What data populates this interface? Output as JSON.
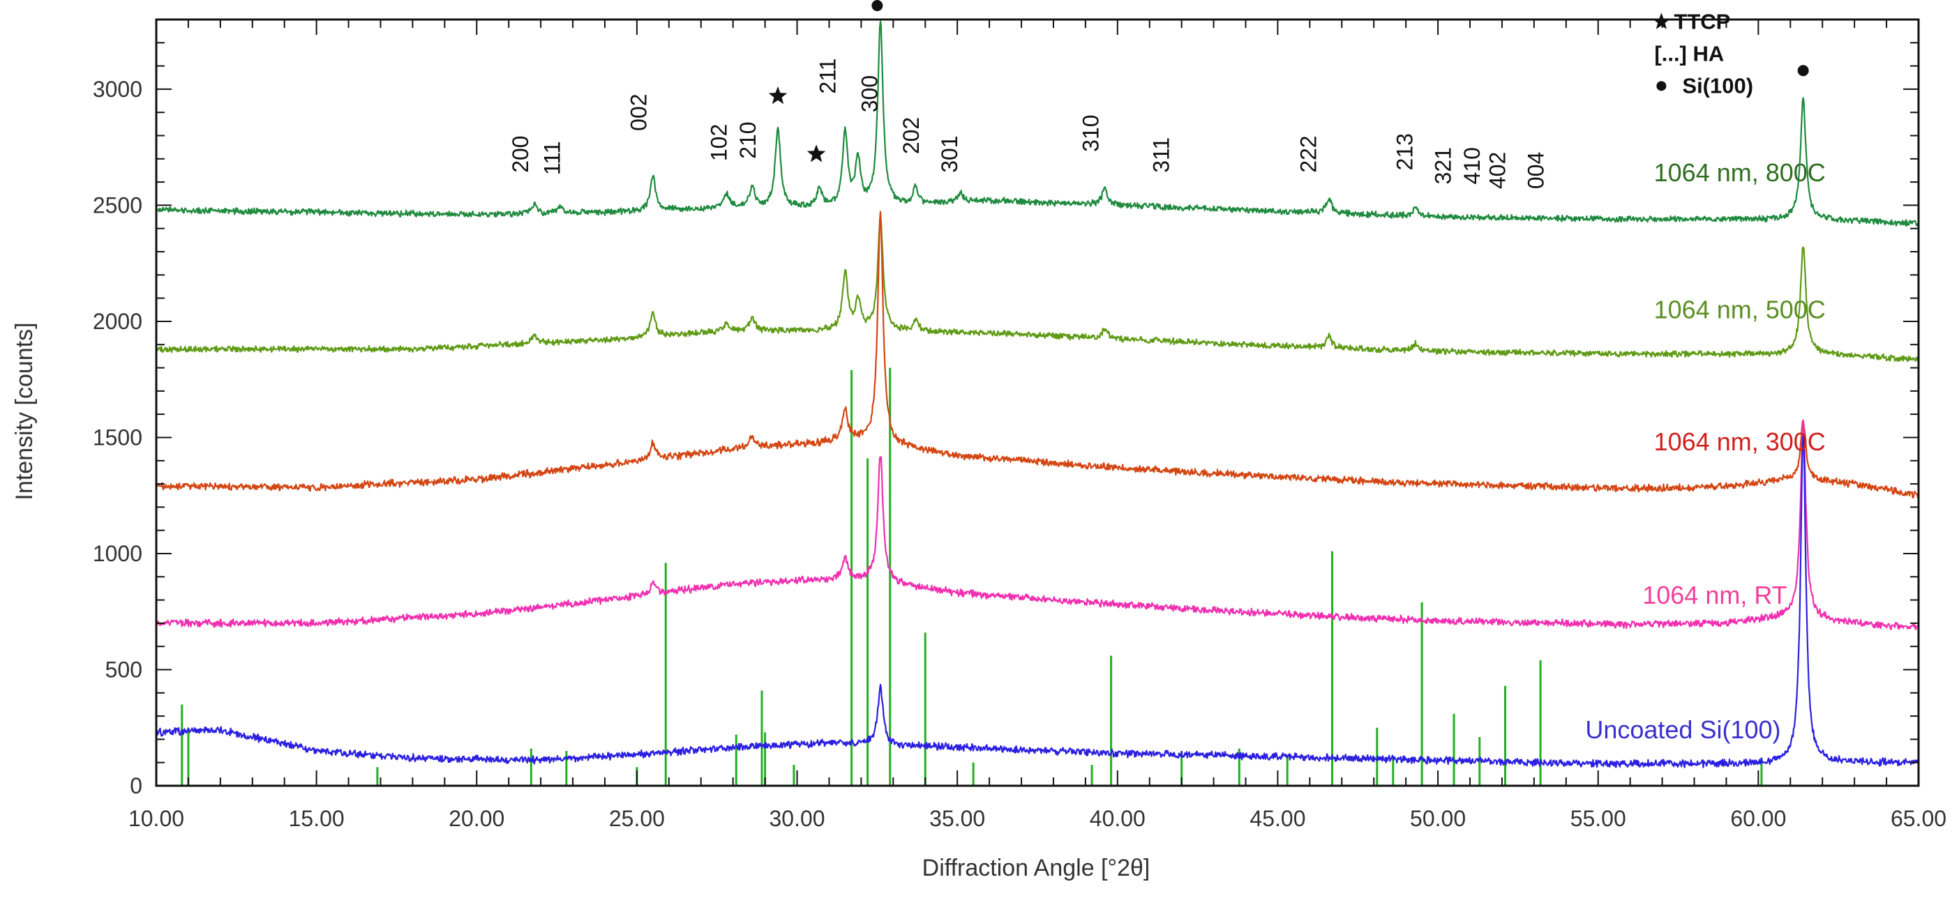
{
  "chart_data": {
    "type": "line",
    "xlabel": "Diffraction Angle [°2θ]",
    "ylabel": "Intensity [counts]",
    "xlim": [
      10,
      65
    ],
    "ylim": [
      0,
      3300
    ],
    "x_ticks": [
      10,
      15,
      20,
      25,
      30,
      35,
      40,
      45,
      50,
      55,
      60,
      65
    ],
    "x_tick_labels": [
      "10.00",
      "15.00",
      "20.00",
      "25.00",
      "30.00",
      "35.00",
      "40.00",
      "45.00",
      "50.00",
      "55.00",
      "60.00",
      "65.00"
    ],
    "y_ticks": [
      0,
      500,
      1000,
      1500,
      2000,
      2500,
      3000
    ],
    "y_tick_labels": [
      "0",
      "500",
      "1000",
      "1500",
      "2000",
      "2500",
      "3000"
    ],
    "legend": {
      "placement": "top-right",
      "entries": [
        {
          "symbol": "star",
          "label": "TTCP"
        },
        {
          "symbol": "bracket",
          "label": "[...] HA"
        },
        {
          "symbol": "dot",
          "label": "Si(100)"
        }
      ]
    },
    "series": [
      {
        "name": "1064 nm, 800C",
        "color": "#1e8a3e",
        "label_color": "#2e6e1e",
        "baseline_points": [
          [
            10,
            2480
          ],
          [
            20,
            2460
          ],
          [
            24,
            2470
          ],
          [
            28,
            2490
          ],
          [
            32,
            2490
          ],
          [
            36,
            2520
          ],
          [
            44,
            2480
          ],
          [
            50,
            2450
          ],
          [
            56,
            2440
          ],
          [
            60,
            2440
          ],
          [
            62,
            2440
          ],
          [
            65,
            2420
          ]
        ],
        "noise": 10,
        "peaks": [
          [
            21.8,
            40
          ],
          [
            22.6,
            30
          ],
          [
            25.5,
            150
          ],
          [
            27.8,
            60
          ],
          [
            28.6,
            90
          ],
          [
            29.4,
            340
          ],
          [
            30.7,
            80
          ],
          [
            31.5,
            320
          ],
          [
            31.9,
            200
          ],
          [
            32.6,
            790
          ],
          [
            33.7,
            70
          ],
          [
            35.1,
            40
          ],
          [
            39.6,
            70
          ],
          [
            46.6,
            60
          ],
          [
            49.3,
            40
          ],
          [
            61.4,
            520
          ]
        ]
      },
      {
        "name": "1064 nm, 500C",
        "color": "#5e9a14",
        "label_color": "#5a8e22",
        "baseline_points": [
          [
            10,
            1880
          ],
          [
            18,
            1880
          ],
          [
            24,
            1920
          ],
          [
            28,
            1960
          ],
          [
            32,
            1960
          ],
          [
            36,
            1950
          ],
          [
            44,
            1900
          ],
          [
            50,
            1870
          ],
          [
            56,
            1860
          ],
          [
            60,
            1860
          ],
          [
            62,
            1860
          ],
          [
            65,
            1835
          ]
        ],
        "noise": 10,
        "peaks": [
          [
            21.8,
            30
          ],
          [
            25.5,
            100
          ],
          [
            27.8,
            30
          ],
          [
            28.6,
            60
          ],
          [
            31.5,
            250
          ],
          [
            31.9,
            130
          ],
          [
            32.6,
            480
          ],
          [
            33.7,
            50
          ],
          [
            39.6,
            40
          ],
          [
            46.6,
            50
          ],
          [
            49.3,
            30
          ],
          [
            61.4,
            470
          ]
        ]
      },
      {
        "name": "1064 nm, 300C",
        "color": "#d34512",
        "label_color": "#d21e1e",
        "baseline_points": [
          [
            10,
            1290
          ],
          [
            15,
            1285
          ],
          [
            20,
            1320
          ],
          [
            24,
            1380
          ],
          [
            28,
            1450
          ],
          [
            31,
            1480
          ],
          [
            32,
            1490
          ],
          [
            35,
            1420
          ],
          [
            40,
            1370
          ],
          [
            45,
            1330
          ],
          [
            50,
            1300
          ],
          [
            56,
            1280
          ],
          [
            59,
            1290
          ],
          [
            61,
            1320
          ],
          [
            63,
            1300
          ],
          [
            65,
            1250
          ]
        ],
        "noise": 12,
        "peaks": [
          [
            25.5,
            70
          ],
          [
            28.6,
            50
          ],
          [
            31.5,
            130
          ],
          [
            32.6,
            990
          ],
          [
            61.4,
            250
          ]
        ]
      },
      {
        "name": "1064 nm, RT",
        "color": "#f02fb0",
        "label_color": "#f0409a",
        "baseline_points": [
          [
            10,
            700
          ],
          [
            15,
            700
          ],
          [
            20,
            740
          ],
          [
            24,
            800
          ],
          [
            28,
            870
          ],
          [
            31,
            890
          ],
          [
            32,
            890
          ],
          [
            35,
            830
          ],
          [
            40,
            780
          ],
          [
            45,
            740
          ],
          [
            50,
            710
          ],
          [
            56,
            695
          ],
          [
            59,
            700
          ],
          [
            61,
            730
          ],
          [
            63,
            700
          ],
          [
            65,
            680
          ]
        ],
        "noise": 12,
        "peaks": [
          [
            25.5,
            50
          ],
          [
            31.5,
            90
          ],
          [
            32.6,
            550
          ],
          [
            61.4,
            850
          ]
        ]
      },
      {
        "name": "Uncoated Si(100)",
        "color": "#2b1fe0",
        "label_color": "#3a2fd0",
        "baseline_points": [
          [
            10,
            230
          ],
          [
            12,
            240
          ],
          [
            13,
            210
          ],
          [
            15,
            150
          ],
          [
            18,
            120
          ],
          [
            22,
            110
          ],
          [
            25,
            135
          ],
          [
            28,
            165
          ],
          [
            31,
            185
          ],
          [
            33,
            175
          ],
          [
            36,
            160
          ],
          [
            40,
            140
          ],
          [
            45,
            125
          ],
          [
            50,
            110
          ],
          [
            55,
            95
          ],
          [
            60,
            95
          ],
          [
            62,
            100
          ],
          [
            65,
            100
          ]
        ],
        "noise": 12,
        "peaks": [
          [
            32.6,
            250
          ],
          [
            61.4,
            1420
          ]
        ]
      }
    ],
    "reference_lines": {
      "color": "#22b022",
      "lines": [
        [
          10.8,
          350
        ],
        [
          11.0,
          250
        ],
        [
          16.9,
          80
        ],
        [
          21.7,
          160
        ],
        [
          22.8,
          150
        ],
        [
          25.0,
          80
        ],
        [
          25.9,
          960
        ],
        [
          28.1,
          220
        ],
        [
          28.9,
          410
        ],
        [
          29.0,
          230
        ],
        [
          29.9,
          90
        ],
        [
          31.7,
          1790
        ],
        [
          32.2,
          1410
        ],
        [
          32.9,
          1800
        ],
        [
          34.0,
          660
        ],
        [
          35.5,
          100
        ],
        [
          39.2,
          90
        ],
        [
          39.8,
          560
        ],
        [
          42.0,
          150
        ],
        [
          43.8,
          160
        ],
        [
          45.3,
          130
        ],
        [
          46.7,
          1010
        ],
        [
          48.1,
          250
        ],
        [
          48.6,
          120
        ],
        [
          49.5,
          790
        ],
        [
          50.5,
          310
        ],
        [
          51.3,
          210
        ],
        [
          52.1,
          430
        ],
        [
          53.2,
          540
        ],
        [
          60.1,
          120
        ]
      ]
    },
    "peak_annotations": [
      {
        "label": "200",
        "x": 21.6,
        "y": 2640,
        "rotated": true
      },
      {
        "label": "111",
        "x": 22.6,
        "y": 2630,
        "rotated": true
      },
      {
        "label": "002",
        "x": 25.3,
        "y": 2820,
        "rotated": true
      },
      {
        "label": "102",
        "x": 27.8,
        "y": 2690,
        "rotated": true
      },
      {
        "label": "210",
        "x": 28.7,
        "y": 2700,
        "rotated": true
      },
      {
        "label": "211",
        "x": 31.2,
        "y": 2980,
        "rotated": true
      },
      {
        "label": "300",
        "x": 32.5,
        "y": 2900,
        "rotated": true
      },
      {
        "label": "202",
        "x": 33.8,
        "y": 2720,
        "rotated": true
      },
      {
        "label": "301",
        "x": 35.0,
        "y": 2640,
        "rotated": true
      },
      {
        "label": "310",
        "x": 39.4,
        "y": 2730,
        "rotated": true
      },
      {
        "label": "311",
        "x": 41.6,
        "y": 2640,
        "rotated": true
      },
      {
        "label": "222",
        "x": 46.2,
        "y": 2640,
        "rotated": true
      },
      {
        "label": "213",
        "x": 49.2,
        "y": 2650,
        "rotated": true
      },
      {
        "label": "321",
        "x": 50.4,
        "y": 2590,
        "rotated": true
      },
      {
        "label": "410",
        "x": 51.3,
        "y": 2590,
        "rotated": true
      },
      {
        "label": "402",
        "x": 52.1,
        "y": 2570,
        "rotated": true
      },
      {
        "label": "004",
        "x": 53.3,
        "y": 2570,
        "rotated": true
      }
    ],
    "phase_markers": [
      {
        "symbol": "star",
        "x": 29.4,
        "y": 2970
      },
      {
        "symbol": "star",
        "x": 30.6,
        "y": 2720
      },
      {
        "symbol": "dot",
        "x": 32.5,
        "y": 3360
      },
      {
        "symbol": "dot",
        "x": 61.4,
        "y": 3080
      }
    ]
  }
}
